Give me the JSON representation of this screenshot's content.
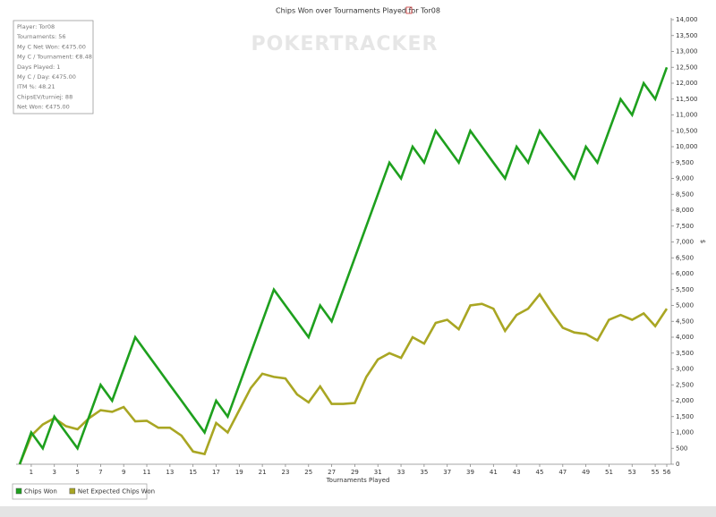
{
  "chart_data": {
    "type": "line",
    "title": "Chips Won over Tournaments Played for Tor08",
    "watermark": "POKERTRACKER",
    "xlabel": "Tournaments Played",
    "ylabel": "$",
    "info_box": [
      "Player: Tor08",
      "Tournaments: 56",
      "My C Net Won: €475.00",
      "My C / Tournament: €8.48",
      "Days Played: 1",
      "My C / Day: €475.00",
      "ITM %: 48.21",
      "ChipsEV/turniej: 88",
      "Net Won: €475.00"
    ],
    "x": [
      0,
      1,
      2,
      3,
      4,
      5,
      6,
      7,
      8,
      9,
      10,
      11,
      12,
      13,
      14,
      15,
      16,
      17,
      18,
      19,
      20,
      21,
      22,
      23,
      24,
      25,
      26,
      27,
      28,
      29,
      30,
      31,
      32,
      33,
      34,
      35,
      36,
      37,
      38,
      39,
      40,
      41,
      42,
      43,
      44,
      45,
      46,
      47,
      48,
      49,
      50,
      51,
      52,
      53,
      54,
      55,
      56
    ],
    "series": [
      {
        "name": "Chips Won",
        "color": "#1ea01e",
        "values": [
          0,
          1000,
          500,
          1500,
          1000,
          500,
          1500,
          2500,
          2000,
          3000,
          4000,
          3500,
          3000,
          2500,
          2000,
          1500,
          1000,
          2000,
          1500,
          2500,
          3500,
          4500,
          5500,
          5000,
          4500,
          4000,
          5000,
          4500,
          5500,
          6500,
          7500,
          8500,
          9500,
          9000,
          10000,
          9500,
          10500,
          10000,
          9500,
          10500,
          10000,
          9500,
          9000,
          10000,
          9500,
          10500,
          10000,
          9500,
          9000,
          10000,
          9500,
          10500,
          11500,
          11000,
          12000,
          11500,
          12500
        ]
      },
      {
        "name": "Net Expected Chips Won",
        "color": "#a9a623",
        "values": [
          0,
          900,
          1250,
          1450,
          1200,
          1100,
          1450,
          1700,
          1650,
          1800,
          1350,
          1370,
          1150,
          1150,
          900,
          400,
          320,
          1300,
          1000,
          1700,
          2400,
          2850,
          2750,
          2700,
          2200,
          1950,
          2450,
          1900,
          1900,
          1930,
          2750,
          3300,
          3500,
          3350,
          4000,
          3800,
          4450,
          4550,
          4250,
          5000,
          5050,
          4900,
          4200,
          4700,
          4900,
          5350,
          4800,
          4300,
          4150,
          4100,
          3900,
          4550,
          4700,
          4550,
          4750,
          4350,
          4900
        ]
      }
    ],
    "xlim": [
      0,
      56
    ],
    "xticks": [
      1,
      3,
      5,
      7,
      9,
      11,
      13,
      15,
      17,
      19,
      21,
      23,
      25,
      27,
      29,
      31,
      33,
      35,
      37,
      39,
      41,
      43,
      45,
      47,
      49,
      51,
      53,
      55,
      56
    ],
    "ylim": [
      0,
      14000
    ],
    "yticks": [
      0,
      500,
      {
        "value": 1000,
        "label": "1,000"
      },
      {
        "value": 1500,
        "label": "1,500"
      },
      {
        "value": 2000,
        "label": "2,000"
      },
      {
        "value": 2500,
        "label": "2,500"
      },
      {
        "value": 3000,
        "label": "3,000"
      },
      {
        "value": 3500,
        "label": "3,500"
      },
      {
        "value": 4000,
        "label": "4,000"
      },
      {
        "value": 4500,
        "label": "4,500"
      },
      {
        "value": 5000,
        "label": "5,000"
      },
      {
        "value": 5500,
        "label": "5,500"
      },
      {
        "value": 6000,
        "label": "6,000"
      },
      {
        "value": 6500,
        "label": "6,500"
      },
      {
        "value": 7000,
        "label": "7,000"
      },
      {
        "value": 7500,
        "label": "7,500"
      },
      {
        "value": 8000,
        "label": "8,000"
      },
      {
        "value": 8500,
        "label": "8,500"
      },
      {
        "value": 9000,
        "label": "9,000"
      },
      {
        "value": 9500,
        "label": "9,500"
      },
      {
        "value": 10000,
        "label": "10,000"
      },
      {
        "value": 10500,
        "label": "10,500"
      },
      {
        "value": 11000,
        "label": "11,000"
      },
      {
        "value": 11500,
        "label": "11,500"
      },
      {
        "value": 12000,
        "label": "12,000"
      },
      {
        "value": 12500,
        "label": "12,500"
      },
      {
        "value": 13000,
        "label": "13,000"
      },
      {
        "value": 13500,
        "label": "13,500"
      },
      {
        "value": 14000,
        "label": "14,000"
      }
    ],
    "grid": false,
    "legend": "bottom-left"
  }
}
